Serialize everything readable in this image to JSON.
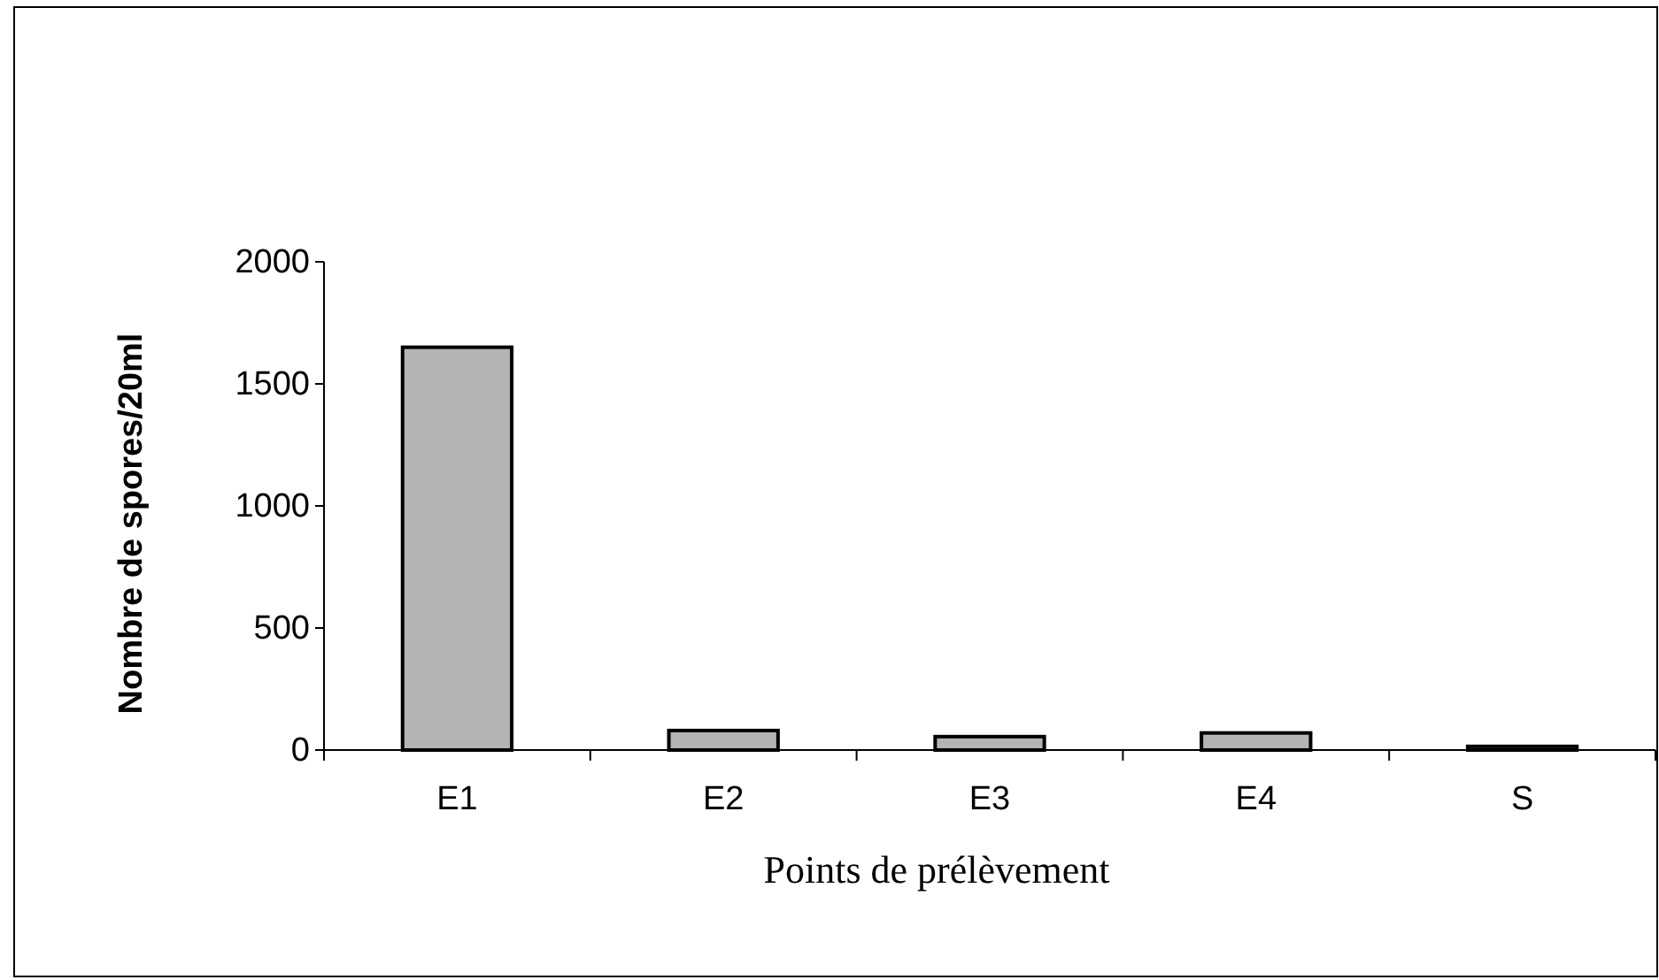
{
  "chart_data": {
    "type": "bar",
    "xlabel": "Points de prélèvement",
    "ylabel": "Nombre de spores/20ml",
    "categories": [
      "E1",
      "E2",
      "E3",
      "E4",
      "S"
    ],
    "values": [
      1650,
      80,
      55,
      70,
      15
    ],
    "color": "#b4b4b4",
    "ylim": [
      0,
      2000
    ],
    "yticks": [
      0,
      500,
      1000,
      1500,
      2000
    ],
    "grid": false
  }
}
